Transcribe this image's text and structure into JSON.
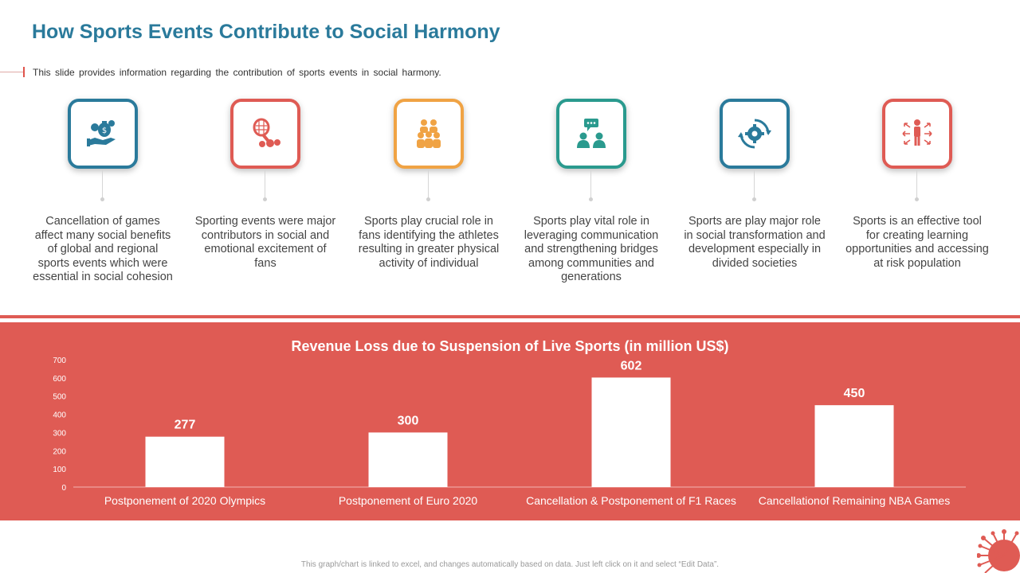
{
  "header": {
    "title": "How Sports Events Contribute to Social Harmony",
    "subtitle": "This slide provides information regarding the contribution of sports events in social harmony."
  },
  "features": [
    {
      "icon": "money-bag-hand-icon",
      "color": "#2a7a9b",
      "text": "Cancellation of games affect many social benefits of global and regional sports events which were essential in social cohesion"
    },
    {
      "icon": "tennis-racket-balls-icon",
      "color": "#df5b54",
      "text": "Sporting events were major contributors in social and emotional excitement of fans"
    },
    {
      "icon": "crowd-people-icon",
      "color": "#f0a344",
      "text": "Sports play crucial role in fans identifying the athletes resulting in greater physical activity of individual"
    },
    {
      "icon": "chat-people-icon",
      "color": "#2a9a8e",
      "text": "Sports play vital role in leveraging communication and strengthening bridges among communities and generations"
    },
    {
      "icon": "gear-cycle-icon",
      "color": "#2a7a9b",
      "text": "Sports are play major role in social transformation and development especially in divided societies"
    },
    {
      "icon": "person-arrows-icon",
      "color": "#df5b54",
      "text": "Sports is an effective tool for creating learning opportunities and accessing at risk population"
    }
  ],
  "chart_data": {
    "type": "bar",
    "title": "Revenue Loss due to Suspension of Live Sports (in million US$)",
    "categories": [
      "Postponement of 2020 Olympics",
      "Postponement of Euro 2020",
      "Cancellation & Postponement of F1 Races",
      "Cancellationof Remaining NBA Games"
    ],
    "values": [
      277,
      300,
      602,
      450
    ],
    "value_labels": [
      "277",
      "300",
      "602",
      "450"
    ],
    "ylim": [
      0,
      700
    ],
    "yticks": [
      0,
      100,
      200,
      300,
      400,
      500,
      600,
      700
    ],
    "ytick_labels": [
      "0",
      "100",
      "200",
      "300",
      "400",
      "500",
      "600",
      "700"
    ],
    "xlabel": "",
    "ylabel": "",
    "grid": false,
    "bar_color": "#ffffff",
    "background": "#df5b54"
  },
  "footer": {
    "note": "This graph/chart is linked to excel, and changes automatically based on data. Just left click on it and select “Edit Data”."
  }
}
